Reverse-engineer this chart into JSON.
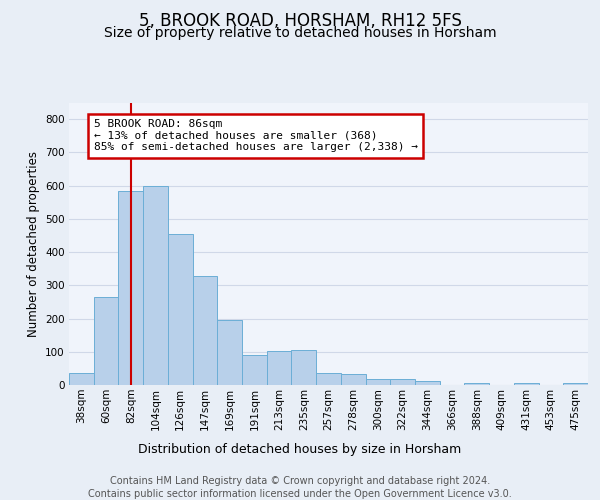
{
  "title1": "5, BROOK ROAD, HORSHAM, RH12 5FS",
  "title2": "Size of property relative to detached houses in Horsham",
  "xlabel": "Distribution of detached houses by size in Horsham",
  "ylabel": "Number of detached properties",
  "footer1": "Contains HM Land Registry data © Crown copyright and database right 2024.",
  "footer2": "Contains public sector information licensed under the Open Government Licence v3.0.",
  "annotation_title": "5 BROOK ROAD: 86sqm",
  "annotation_line1": "← 13% of detached houses are smaller (368)",
  "annotation_line2": "85% of semi-detached houses are larger (2,338) →",
  "bar_values": [
    37,
    265,
    585,
    600,
    453,
    328,
    195,
    90,
    102,
    105,
    37,
    32,
    18,
    17,
    12,
    0,
    6,
    0,
    7,
    0,
    7
  ],
  "categories": [
    "38sqm",
    "60sqm",
    "82sqm",
    "104sqm",
    "126sqm",
    "147sqm",
    "169sqm",
    "191sqm",
    "213sqm",
    "235sqm",
    "257sqm",
    "278sqm",
    "300sqm",
    "322sqm",
    "344sqm",
    "366sqm",
    "388sqm",
    "409sqm",
    "431sqm",
    "453sqm",
    "475sqm"
  ],
  "bar_color": "#b8d0ea",
  "bar_edge_color": "#6baed6",
  "vline_x_idx": 2,
  "vline_color": "#cc0000",
  "annot_box_color": "#cc0000",
  "ylim_max": 850,
  "yticks": [
    0,
    100,
    200,
    300,
    400,
    500,
    600,
    700,
    800
  ],
  "bg_color": "#e8eef6",
  "plot_bg_color": "#f0f4fb",
  "grid_color": "#d0d8e8",
  "title1_fontsize": 12,
  "title2_fontsize": 10,
  "ylabel_fontsize": 8.5,
  "xlabel_fontsize": 9,
  "tick_fontsize": 7.5,
  "annot_fontsize": 8,
  "footer_fontsize": 7
}
